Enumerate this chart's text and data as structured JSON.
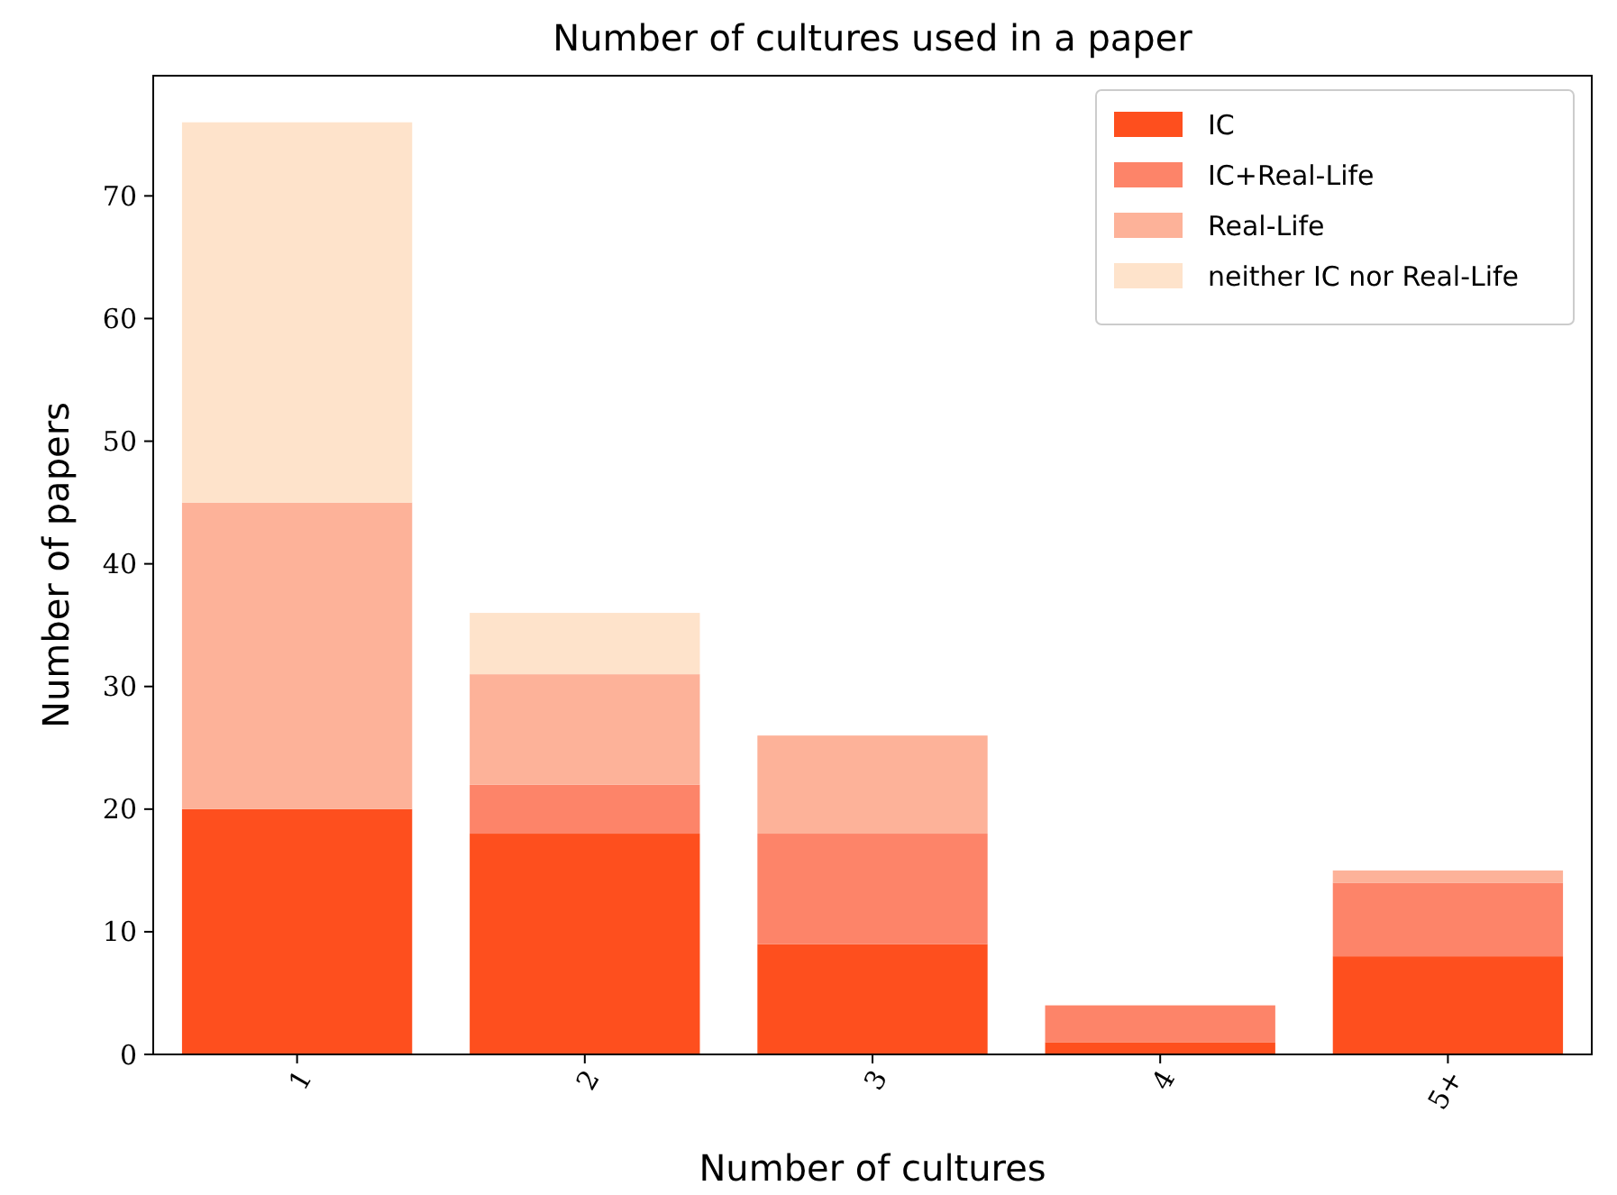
{
  "chart_data": {
    "type": "bar",
    "title": "Number of cultures used in a paper",
    "xlabel": "Number of cultures",
    "ylabel": "Number of papers",
    "categories": [
      "1",
      "2",
      "3",
      "4",
      "5+"
    ],
    "stacked": true,
    "series": [
      {
        "name": "IC",
        "color": "#fe4f1e",
        "values": [
          20,
          18,
          9,
          1,
          8
        ]
      },
      {
        "name": "IC+Real-Life",
        "color": "#fd8469",
        "values": [
          0,
          4,
          9,
          3,
          6
        ]
      },
      {
        "name": "Real-Life",
        "color": "#fdb299",
        "values": [
          25,
          9,
          8,
          0,
          1
        ]
      },
      {
        "name": "neither IC nor Real-Life",
        "color": "#fee3cb",
        "values": [
          31,
          5,
          0,
          0,
          0
        ]
      }
    ],
    "ylim": [
      0,
      79.8
    ],
    "yticks": [
      0,
      10,
      20,
      30,
      40,
      50,
      60,
      70
    ],
    "legend": "top right",
    "grid": false
  }
}
